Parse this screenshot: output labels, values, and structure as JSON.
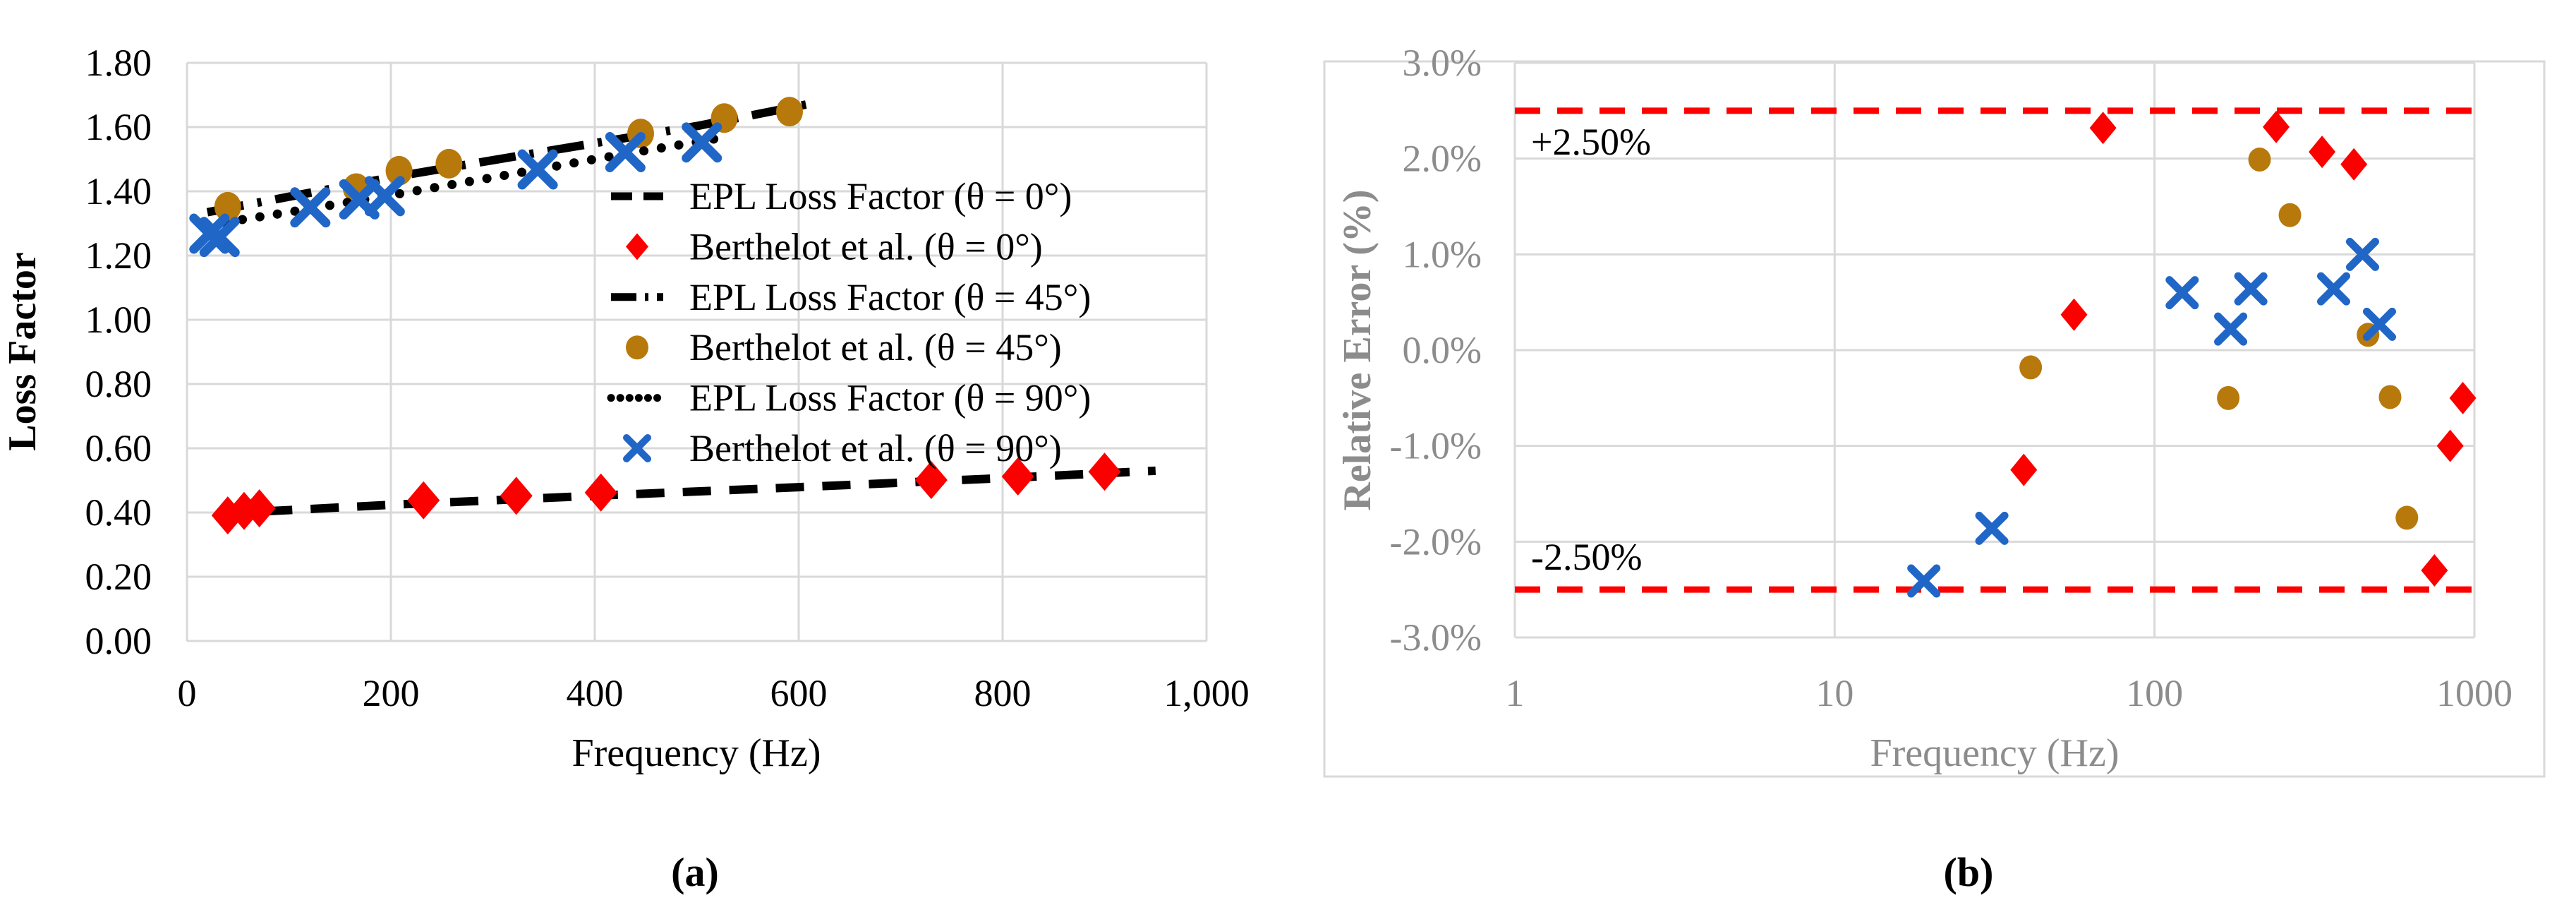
{
  "figure": {
    "description": "Two-panel scientific figure comparing EPL loss factor model with Berthelot et al. data",
    "captions": {
      "a": "(a)",
      "b": "(b)"
    }
  },
  "colors": {
    "black": "#000000",
    "red": "#FC0000",
    "brown": "#B7790B",
    "blue": "#2066C6",
    "grid": "#D9D9D9",
    "border": "#D9D9D9",
    "gray_text": "#8C8C8C",
    "ref_line": "#FF0000",
    "background": "#FFFFFF"
  },
  "chart_data": [
    {
      "type": "line",
      "title": "",
      "xlabel": "Frequency (Hz)",
      "ylabel": "Loss Factor",
      "caption": "(a)",
      "xscale": "linear",
      "xlim": [
        0,
        1000
      ],
      "ylim": [
        0,
        1.8
      ],
      "grid": true,
      "legend_position": "inside-right",
      "xticks": [
        0,
        200,
        400,
        600,
        800,
        1000
      ],
      "xtick_labels": [
        "0",
        "200",
        "400",
        "600",
        "800",
        "1,000"
      ],
      "yticks": [
        0,
        0.2,
        0.4,
        0.6,
        0.8,
        1.0,
        1.2,
        1.4,
        1.6,
        1.8
      ],
      "ytick_labels": [
        "0.00",
        "0.20",
        "0.40",
        "0.60",
        "0.80",
        "1.00",
        "1.20",
        "1.40",
        "1.60",
        "1.80"
      ],
      "series": [
        {
          "name": "EPL Loss Factor (θ = 0°)",
          "kind": "line",
          "style": "dashed",
          "color": "#000000",
          "points": [
            [
              30,
              0.396
            ],
            [
              200,
              0.424
            ],
            [
              400,
              0.452
            ],
            [
              600,
              0.479
            ],
            [
              800,
              0.507
            ],
            [
              950,
              0.53
            ]
          ]
        },
        {
          "name": "Berthelot et al. (θ = 0°)",
          "kind": "scatter",
          "marker": "diamond",
          "color": "#FC0000",
          "points": [
            [
              40,
              0.391
            ],
            [
              56,
              0.405
            ],
            [
              71,
              0.413
            ],
            [
              232,
              0.438
            ],
            [
              323,
              0.452
            ],
            [
              406,
              0.462
            ],
            [
              730,
              0.501
            ],
            [
              815,
              0.512
            ],
            [
              900,
              0.527
            ]
          ]
        },
        {
          "name": "EPL Loss Factor (θ = 45°)",
          "kind": "line",
          "style": "dashdot",
          "color": "#000000",
          "points": [
            [
              20,
              1.335
            ],
            [
              100,
              1.383
            ],
            [
              200,
              1.443
            ],
            [
              300,
              1.497
            ],
            [
              400,
              1.55
            ],
            [
              500,
              1.603
            ],
            [
              615,
              1.675
            ]
          ]
        },
        {
          "name": "Berthelot et al. (θ = 45°)",
          "kind": "scatter",
          "marker": "circle",
          "color": "#B7790B",
          "points": [
            [
              40,
              1.352
            ],
            [
              166,
              1.41
            ],
            [
              208,
              1.464
            ],
            [
              257,
              1.486
            ],
            [
              445,
              1.58
            ],
            [
              527,
              1.628
            ],
            [
              591,
              1.648
            ]
          ]
        },
        {
          "name": "EPL Loss Factor (θ = 90°)",
          "kind": "line",
          "style": "dotted",
          "color": "#000000",
          "points": [
            [
              20,
              1.295
            ],
            [
              100,
              1.335
            ],
            [
              200,
              1.388
            ],
            [
              300,
              1.443
            ],
            [
              400,
              1.5
            ],
            [
              525,
              1.567
            ]
          ]
        },
        {
          "name": "Berthelot et al. (θ = 90°)",
          "kind": "scatter",
          "marker": "x",
          "color": "#2066C6",
          "points": [
            [
              22,
              1.268
            ],
            [
              32,
              1.258
            ],
            [
              121,
              1.35
            ],
            [
              169,
              1.375
            ],
            [
              194,
              1.385
            ],
            [
              344,
              1.468
            ],
            [
              430,
              1.522
            ],
            [
              505,
              1.552
            ]
          ]
        }
      ]
    },
    {
      "type": "scatter",
      "title": "",
      "xlabel": "Frequency (Hz)",
      "ylabel": "Relative Error (%)",
      "caption": "(b)",
      "xscale": "log",
      "xlim": [
        1,
        1000
      ],
      "ylim": [
        -3,
        3
      ],
      "grid": true,
      "legend_position": "none",
      "xticks": [
        1,
        10,
        100,
        1000
      ],
      "xtick_labels": [
        "1",
        "10",
        "100",
        "1000"
      ],
      "yticks": [
        3,
        2,
        1,
        0,
        -1,
        -2,
        -3
      ],
      "ytick_labels": [
        "3.0%",
        "2.0%",
        "1.0%",
        "0.0%",
        "-1.0%",
        "-2.0%",
        "-3.0%"
      ],
      "ref_lines": [
        {
          "y": 2.5,
          "label": "+2.50%",
          "color": "#FF0000"
        },
        {
          "y": -2.5,
          "label": "-2.50%",
          "color": "#FF0000"
        }
      ],
      "series": [
        {
          "name": "Berthelot et al. (θ = 0°)",
          "kind": "scatter",
          "marker": "diamond",
          "color": "#FC0000",
          "points": [
            [
              39,
              -1.25
            ],
            [
              56,
              0.37
            ],
            [
              69,
              2.32
            ],
            [
              240,
              2.33
            ],
            [
              334,
              2.07
            ],
            [
              420,
              1.94
            ],
            [
              750,
              -2.3
            ],
            [
              840,
              -1.0
            ],
            [
              920,
              -0.5
            ]
          ]
        },
        {
          "name": "Berthelot et al. (θ = 45°)",
          "kind": "scatter",
          "marker": "circle",
          "color": "#B7790B",
          "points": [
            [
              41,
              -0.18
            ],
            [
              170,
              -0.5
            ],
            [
              213,
              1.99
            ],
            [
              265,
              1.41
            ],
            [
              465,
              0.16
            ],
            [
              545,
              -0.49
            ],
            [
              615,
              -1.75
            ]
          ]
        },
        {
          "name": "Berthelot et al. (θ = 90°)",
          "kind": "scatter",
          "marker": "x",
          "color": "#2066C6",
          "points": [
            [
              19,
              -2.41
            ],
            [
              31,
              -1.86
            ],
            [
              122,
              0.6
            ],
            [
              173,
              0.22
            ],
            [
              200,
              0.64
            ],
            [
              363,
              0.64
            ],
            [
              447,
              1.0
            ],
            [
              505,
              0.27
            ]
          ]
        }
      ]
    }
  ]
}
